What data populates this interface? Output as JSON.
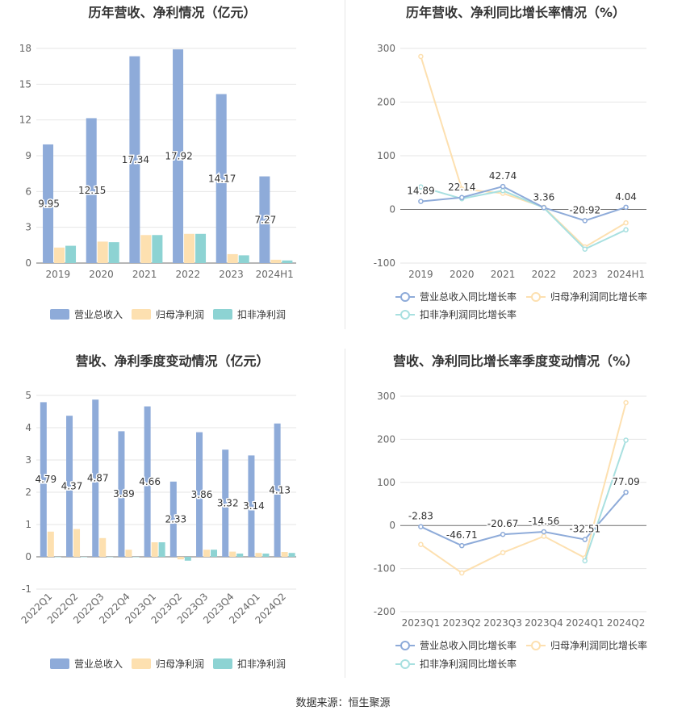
{
  "source_text": "数据来源：恒生聚源",
  "legend": {
    "revenue": "营业总收入",
    "net_profit": "归母净利润",
    "deducted_profit": "扣非净利润",
    "revenue_growth": "营业总收入同比增长率",
    "net_profit_growth": "归母净利润同比增长率",
    "deducted_profit_growth": "扣非净利润同比增长率"
  },
  "colors": {
    "revenue": "#8eabd9",
    "net_profit": "#fde0b0",
    "deducted_profit": "#8dd3d3",
    "revenue_line": "#8eabd9",
    "net_profit_line": "#fde0b0",
    "deducted_profit_line": "#a8e0e0"
  },
  "chart_data": [
    {
      "type": "bar",
      "title": "历年营收、净利情况（亿元）",
      "categories": [
        "2019",
        "2020",
        "2021",
        "2022",
        "2023",
        "2024H1"
      ],
      "ylim": [
        0,
        18
      ],
      "yticks": [
        0,
        3,
        6,
        9,
        12,
        15,
        18
      ],
      "series": [
        {
          "name": "营业总收入",
          "values": [
            9.95,
            12.15,
            17.34,
            17.92,
            14.17,
            7.27
          ],
          "labels": [
            "9.95",
            "12.15",
            "17.34",
            "17.92",
            "14.17",
            "7.27"
          ]
        },
        {
          "name": "归母净利润",
          "values": [
            1.3,
            1.8,
            2.35,
            2.45,
            0.75,
            0.28
          ]
        },
        {
          "name": "扣非净利润",
          "values": [
            1.45,
            1.75,
            2.35,
            2.45,
            0.65,
            0.22
          ]
        }
      ],
      "legend_position": "bottom"
    },
    {
      "type": "line",
      "title": "历年营收、净利同比增长率情况（%）",
      "categories": [
        "2019",
        "2020",
        "2021",
        "2022",
        "2023",
        "2024H1"
      ],
      "ylim": [
        -100,
        300
      ],
      "yticks": [
        -100,
        0,
        100,
        200,
        300
      ],
      "series": [
        {
          "name": "营业总收入同比增长率",
          "values": [
            14.89,
            22.14,
            42.74,
            3.36,
            -20.92,
            4.04
          ],
          "labels": [
            "14.89",
            "22.14",
            "42.74",
            "3.36",
            "-20.92",
            "4.04"
          ]
        },
        {
          "name": "归母净利润同比增长率",
          "values": [
            285,
            38,
            30,
            4,
            -70,
            -25
          ]
        },
        {
          "name": "扣非净利润同比增长率",
          "values": [
            42,
            20,
            35,
            3,
            -74,
            -38
          ]
        }
      ],
      "legend_position": "bottom"
    },
    {
      "type": "bar",
      "title": "营收、净利季度变动情况（亿元）",
      "categories": [
        "2022Q1",
        "2022Q2",
        "2022Q3",
        "2022Q4",
        "2023Q1",
        "2023Q2",
        "2023Q3",
        "2023Q4",
        "2024Q1",
        "2024Q2"
      ],
      "ylim": [
        -1,
        5
      ],
      "yticks": [
        -1,
        0,
        1,
        2,
        3,
        4,
        5
      ],
      "series": [
        {
          "name": "营业总收入",
          "values": [
            4.79,
            4.37,
            4.87,
            3.89,
            4.66,
            2.33,
            3.86,
            3.32,
            3.14,
            4.13
          ],
          "labels": [
            "4.79",
            "4.37",
            "4.87",
            "3.89",
            "4.66",
            "2.33",
            "3.86",
            "3.32",
            "3.14",
            "4.13"
          ]
        },
        {
          "name": "归母净利润",
          "values": [
            0.78,
            0.86,
            0.58,
            0.22,
            0.45,
            -0.08,
            0.22,
            0.16,
            0.12,
            0.15
          ]
        },
        {
          "name": "扣非净利润",
          "values": [
            0.0,
            0.0,
            0.0,
            0.0,
            0.45,
            -0.12,
            0.22,
            0.1,
            0.1,
            0.12
          ]
        }
      ],
      "legend_position": "bottom"
    },
    {
      "type": "line",
      "title": "营收、净利同比增长率季度变动情况（%）",
      "categories": [
        "2023Q1",
        "2023Q2",
        "2023Q3",
        "2023Q4",
        "2024Q1",
        "2024Q2"
      ],
      "ylim": [
        -200,
        300
      ],
      "yticks": [
        -200,
        -100,
        0,
        100,
        200,
        300
      ],
      "series": [
        {
          "name": "营业总收入同比增长率",
          "values": [
            -2.83,
            -46.71,
            -20.67,
            -14.56,
            -32.51,
            77.09
          ],
          "labels": [
            "-2.83",
            "-46.71",
            "-20.67",
            "-14.56",
            "-32.51",
            "77.09"
          ]
        },
        {
          "name": "归母净利润同比增长率",
          "values": [
            -44,
            -110,
            -63,
            -25,
            -75,
            285
          ]
        },
        {
          "name": "扣非净利润同比增长率",
          "values": [
            null,
            null,
            null,
            null,
            -82,
            198
          ]
        }
      ],
      "legend_position": "bottom"
    }
  ]
}
